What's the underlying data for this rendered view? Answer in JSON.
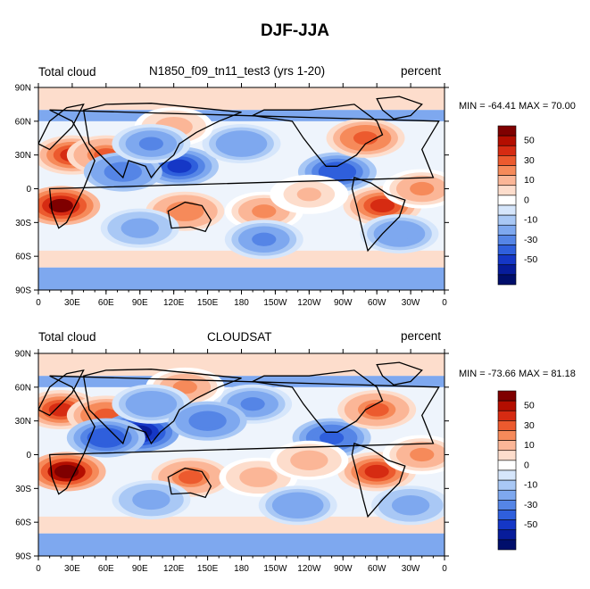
{
  "title": "DJF-JJA",
  "panels": [
    {
      "left_label": "Total cloud",
      "center_label": "N1850_f09_tn11_test3 (yrs 1-20)",
      "right_label": "percent",
      "minmax": "MIN = -64.41 MAX =  70.00"
    },
    {
      "left_label": "Total cloud",
      "center_label": "CLOUDSAT",
      "right_label": "percent",
      "minmax": "MIN = -73.66 MAX =  81.18"
    }
  ],
  "chart_data": {
    "type": "heatmap",
    "x_ticks": [
      "0",
      "30E",
      "60E",
      "90E",
      "120E",
      "150E",
      "180",
      "150W",
      "120W",
      "90W",
      "60W",
      "30W",
      "0"
    ],
    "y_ticks": [
      "90N",
      "60N",
      "30N",
      "0",
      "30S",
      "60S",
      "90S"
    ],
    "xlim": [
      0,
      360
    ],
    "ylim": [
      -90,
      90
    ],
    "colorbar_labels": [
      "50",
      "30",
      "10",
      "0",
      "-10",
      "-30",
      "-50"
    ],
    "colorbar_colors": [
      "#7f0000",
      "#b40e00",
      "#d62b12",
      "#ec5a2e",
      "#f68a5a",
      "#fbb697",
      "#fdddcc",
      "#ffffff",
      "#d6e6fb",
      "#a9c8f5",
      "#7ea8ef",
      "#5585e6",
      "#2f5fdc",
      "#1537c6",
      "#071c9a",
      "#000e6b"
    ],
    "series": [
      {
        "name": "N1850_f09_tn11_test3 (yrs 1-20)",
        "cells": [
          [
            30,
            30,
            40
          ],
          [
            60,
            30,
            30
          ],
          [
            20,
            -15,
            60
          ],
          [
            125,
            20,
            -45
          ],
          [
            75,
            15,
            -30
          ],
          [
            130,
            -20,
            25
          ],
          [
            200,
            -20,
            20
          ],
          [
            305,
            -15,
            40
          ],
          [
            265,
            15,
            -40
          ],
          [
            290,
            45,
            35
          ],
          [
            180,
            40,
            -20
          ],
          [
            340,
            0,
            20
          ],
          [
            90,
            -35,
            -15
          ],
          [
            200,
            -45,
            -25
          ],
          [
            120,
            55,
            15
          ],
          [
            240,
            -5,
            10
          ],
          [
            320,
            -40,
            -20
          ],
          [
            100,
            40,
            -25
          ]
        ]
      },
      {
        "name": "CLOUDSAT",
        "cells": [
          [
            20,
            40,
            40
          ],
          [
            60,
            35,
            35
          ],
          [
            25,
            -15,
            65
          ],
          [
            90,
            20,
            -60
          ],
          [
            60,
            15,
            -40
          ],
          [
            135,
            -20,
            30
          ],
          [
            195,
            -20,
            15
          ],
          [
            300,
            -15,
            45
          ],
          [
            260,
            15,
            -35
          ],
          [
            300,
            40,
            30
          ],
          [
            190,
            45,
            -25
          ],
          [
            340,
            0,
            20
          ],
          [
            100,
            -40,
            -15
          ],
          [
            230,
            -45,
            -20
          ],
          [
            130,
            60,
            20
          ],
          [
            240,
            -5,
            15
          ],
          [
            330,
            -45,
            -15
          ],
          [
            100,
            45,
            -20
          ],
          [
            150,
            30,
            -30
          ]
        ]
      }
    ]
  }
}
